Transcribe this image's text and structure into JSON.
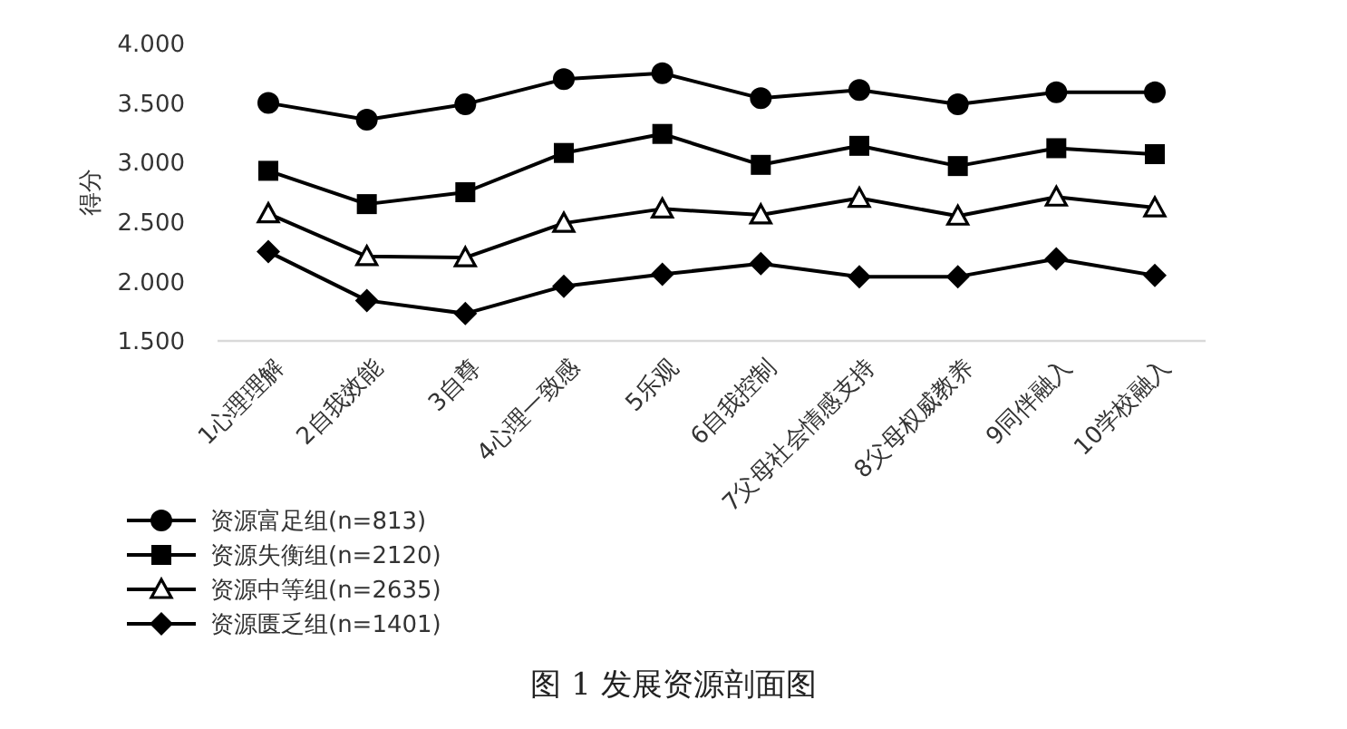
{
  "chart_data": {
    "type": "line",
    "ylabel": "得分",
    "categories": [
      "1心理理解",
      "2自我效能",
      "3自尊",
      "4心理一致感",
      "5乐观",
      "6自我控制",
      "7父母社会情感支持",
      "8父母权威教养",
      "9同伴融入",
      "10学校融入"
    ],
    "series": [
      {
        "name": "资源富足组(n=813)",
        "color": "#000000",
        "marker": "circle",
        "values": [
          3.5,
          3.36,
          3.49,
          3.7,
          3.75,
          3.54,
          3.61,
          3.49,
          3.59,
          3.59
        ]
      },
      {
        "name": "资源失衡组(n=2120)",
        "color": "#000000",
        "marker": "square",
        "values": [
          2.93,
          2.65,
          2.75,
          3.08,
          3.24,
          2.98,
          3.14,
          2.97,
          3.12,
          3.07
        ]
      },
      {
        "name": "资源中等组(n=2635)",
        "color": "#000000",
        "marker": "triangle",
        "values": [
          2.57,
          2.21,
          2.2,
          2.49,
          2.61,
          2.56,
          2.7,
          2.55,
          2.71,
          2.62
        ]
      },
      {
        "name": "资源匮乏组(n=1401)",
        "color": "#000000",
        "marker": "diamond",
        "values": [
          2.25,
          1.84,
          1.73,
          1.96,
          2.06,
          2.15,
          2.04,
          2.04,
          2.19,
          2.05
        ]
      }
    ],
    "ylim": [
      1.5,
      4
    ],
    "yticks": [
      {
        "value": 1.5,
        "label": "1.500"
      },
      {
        "value": 2,
        "label": "2.000"
      },
      {
        "value": 2.5,
        "label": "2.500"
      },
      {
        "value": 3,
        "label": "3.000"
      },
      {
        "value": 3.5,
        "label": "3.500"
      },
      {
        "value": 4,
        "label": "4.000"
      }
    ],
    "grid": false,
    "legend": "bottom left",
    "line_style": "solid",
    "annotations": [
      "图 1 发展资源剖面图"
    ]
  }
}
